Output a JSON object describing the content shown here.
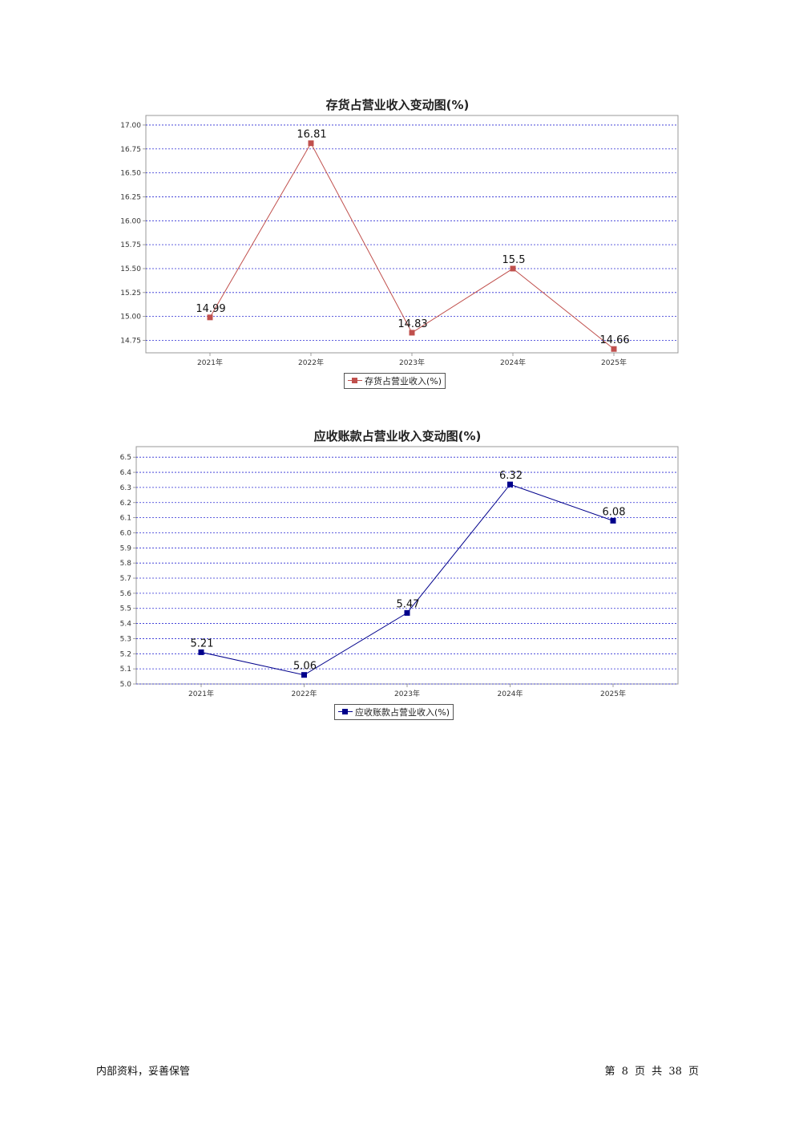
{
  "charts": [
    {
      "title": "存货占营业收入变动图(%)",
      "legend": "存货占营业收入(%)",
      "color": "#c0504d"
    },
    {
      "title": "应收账款占营业收入变动图(%)",
      "legend": "应收账款占营业收入(%)",
      "color": "#00008b"
    }
  ],
  "chart_data": [
    {
      "type": "line",
      "title": "存货占营业收入变动图(%)",
      "categories": [
        "2021年",
        "2022年",
        "2023年",
        "2024年",
        "2025年"
      ],
      "series": [
        {
          "name": "存货占营业收入(%)",
          "values": [
            14.99,
            16.81,
            14.83,
            15.5,
            14.66
          ],
          "color": "#c0504d"
        }
      ],
      "data_labels": [
        "14.99",
        "16.81",
        "14.83",
        "15.5",
        "14.66"
      ],
      "ylim": [
        14.62,
        17.1
      ],
      "yticks": [
        "14.75",
        "15.00",
        "15.25",
        "15.50",
        "15.75",
        "16.00",
        "16.25",
        "16.50",
        "16.75",
        "17.00"
      ],
      "ytick_values": [
        14.75,
        15.0,
        15.25,
        15.5,
        15.75,
        16.0,
        16.25,
        16.5,
        16.75,
        17.0
      ],
      "grid": true,
      "legend_position": "bottom"
    },
    {
      "type": "line",
      "title": "应收账款占营业收入变动图(%)",
      "categories": [
        "2021年",
        "2022年",
        "2023年",
        "2024年",
        "2025年"
      ],
      "series": [
        {
          "name": "应收账款占营业收入(%)",
          "values": [
            5.21,
            5.06,
            5.47,
            6.32,
            6.08
          ],
          "color": "#00008b"
        }
      ],
      "data_labels": [
        "5.21",
        "5.06",
        "5.47",
        "6.32",
        "6.08"
      ],
      "ylim": [
        5.0,
        6.57
      ],
      "yticks": [
        "5.0",
        "5.1",
        "5.2",
        "5.3",
        "5.4",
        "5.5",
        "5.6",
        "5.7",
        "5.8",
        "5.9",
        "6.0",
        "6.1",
        "6.2",
        "6.3",
        "6.4",
        "6.5"
      ],
      "ytick_values": [
        5.0,
        5.1,
        5.2,
        5.3,
        5.4,
        5.5,
        5.6,
        5.7,
        5.8,
        5.9,
        6.0,
        6.1,
        6.2,
        6.3,
        6.4,
        6.5
      ],
      "grid": true,
      "legend_position": "bottom"
    }
  ],
  "footer": {
    "left": "内部资料，妥善保管",
    "right": "第 8 页   共 38 页"
  }
}
